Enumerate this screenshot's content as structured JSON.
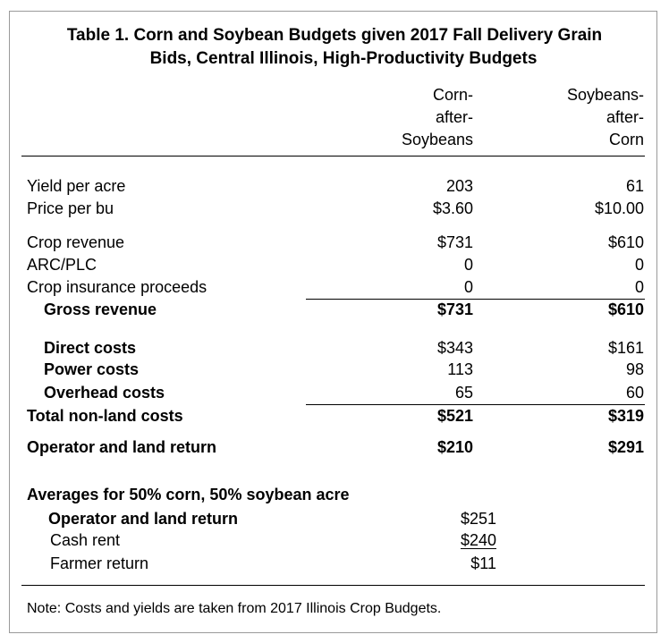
{
  "title": {
    "line1": "Table 1.  Corn and Soybean Budgets given 2017 Fall Delivery Grain",
    "line2": "Bids, Central Illinois, High-Productivity Budgets"
  },
  "columns": {
    "corn": [
      "Corn-",
      "after-",
      "Soybeans"
    ],
    "soy": [
      "Soybeans-",
      "after-",
      "Corn"
    ]
  },
  "rows": {
    "yield": {
      "label": "Yield per acre",
      "corn": "203",
      "soy": "61"
    },
    "price": {
      "label": "Price per bu",
      "corn": "$3.60",
      "soy": "$10.00"
    },
    "crop_revenue": {
      "label": "Crop revenue",
      "corn": "$731",
      "soy": "$610"
    },
    "arc_plc": {
      "label": "ARC/PLC",
      "corn": "0",
      "soy": "0"
    },
    "crop_insurance": {
      "label": "Crop insurance proceeds",
      "corn": "0",
      "soy": "0"
    },
    "gross_revenue": {
      "label": "Gross revenue",
      "corn": "$731",
      "soy": "$610"
    },
    "direct_costs": {
      "label": "Direct costs",
      "corn": "$343",
      "soy": "$161"
    },
    "power_costs": {
      "label": "Power costs",
      "corn": "113",
      "soy": "98"
    },
    "overhead_costs": {
      "label": "Overhead costs",
      "corn": "65",
      "soy": "60"
    },
    "total_nonland": {
      "label": "Total non-land costs",
      "corn": "$521",
      "soy": "$319"
    },
    "operator_land_return": {
      "label": "Operator and land return",
      "corn": "$210",
      "soy": "$291"
    }
  },
  "averages": {
    "heading": "Averages for 50% corn, 50% soybean acre",
    "operator_land_return": {
      "label": "Operator and land return",
      "value": "$251"
    },
    "cash_rent": {
      "label": "Cash rent",
      "value": "$240"
    },
    "farmer_return": {
      "label": "Farmer return",
      "value": "$11"
    }
  },
  "note": "Note:  Costs and yields are taken from 2017 Illinois Crop Budgets."
}
